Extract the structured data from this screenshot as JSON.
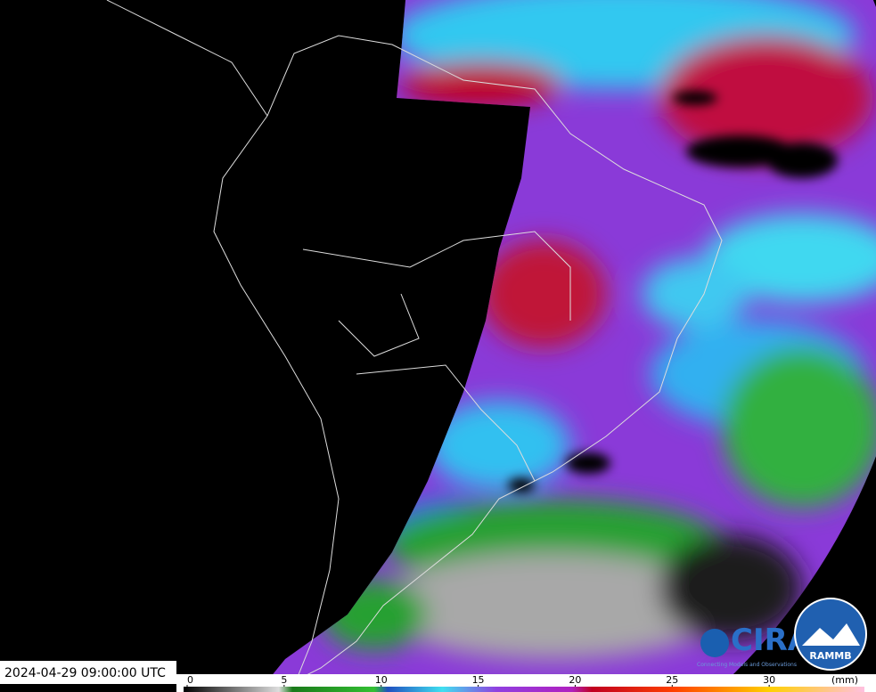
{
  "timestamp": "2024-04-29 09:00:00 UTC",
  "colorbar": {
    "ticks": [
      0,
      5,
      10,
      15,
      20,
      25,
      30
    ],
    "unit": "(mm)",
    "lim": [
      0,
      35
    ]
  },
  "logos": {
    "cira": "CIRA",
    "cira_tagline": "Connecting Models and Observations",
    "rammb": "RAMMB"
  }
}
